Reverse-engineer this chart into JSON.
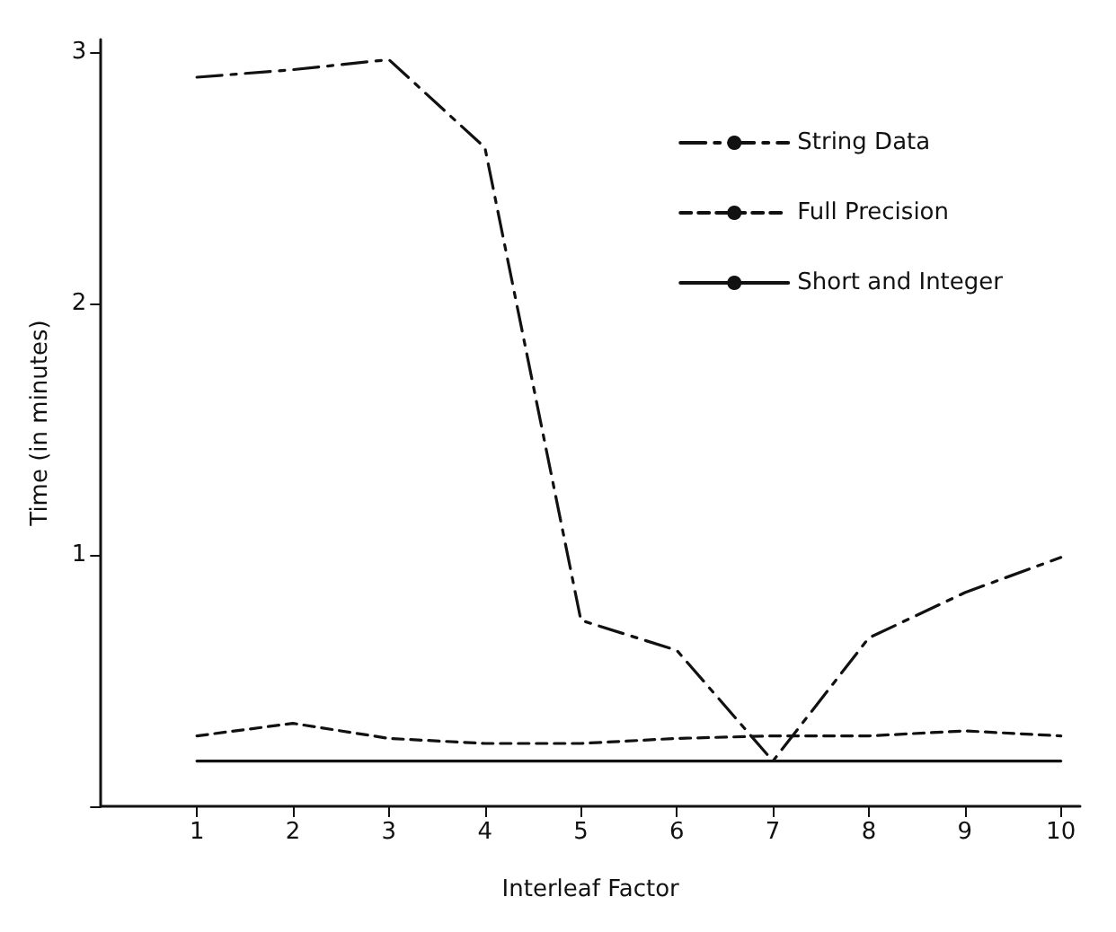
{
  "chart_data": {
    "type": "line",
    "xlabel": "Interleaf Factor",
    "ylabel": "Time (in minutes)",
    "x": [
      1,
      2,
      3,
      4,
      5,
      6,
      7,
      8,
      9,
      10
    ],
    "series": [
      {
        "name": "String Data",
        "color": "#111111",
        "line_style": "dashdot",
        "values": [
          2.9,
          2.93,
          2.97,
          2.62,
          0.74,
          0.62,
          0.18,
          0.67,
          0.85,
          0.99
        ]
      },
      {
        "name": "Full Precision",
        "color": "#111111",
        "line_style": "dashed",
        "values": [
          0.28,
          0.33,
          0.27,
          0.25,
          0.25,
          0.27,
          0.28,
          0.28,
          0.3,
          0.28
        ]
      },
      {
        "name": "Short and Integer",
        "color": "#111111",
        "line_style": "solid",
        "values": [
          0.18,
          0.18,
          0.18,
          0.18,
          0.18,
          0.18,
          0.18,
          0.18,
          0.18,
          0.18
        ]
      }
    ],
    "xlim": [
      0,
      10.2
    ],
    "xticks": [
      1,
      2,
      3,
      4,
      5,
      6,
      7,
      8,
      9,
      10
    ],
    "ylim": [
      0,
      3.05
    ],
    "yticks": [
      {
        "value": 0,
        "label": null
      },
      1,
      2,
      3
    ],
    "grid": false,
    "legend": "top right",
    "marker": "none"
  }
}
